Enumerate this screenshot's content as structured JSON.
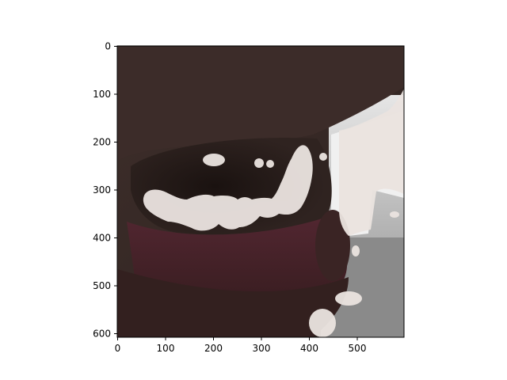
{
  "figure": {
    "axes": {
      "x_ticks": [
        "0",
        "100",
        "200",
        "300",
        "400",
        "500"
      ],
      "y_ticks": [
        "0",
        "100",
        "200",
        "300",
        "400",
        "500",
        "600"
      ],
      "x_range": [
        0,
        599
      ],
      "y_range": [
        0,
        609
      ]
    },
    "image": {
      "subject": "close-up of an open mouth with a segmentation mask overlay highlighting teeth and bright background regions",
      "colors": {
        "skin_dark": "#3a2b27",
        "lip": "#4a2228",
        "window": "#d8d8d8",
        "mask": "#e9e2de"
      }
    }
  }
}
